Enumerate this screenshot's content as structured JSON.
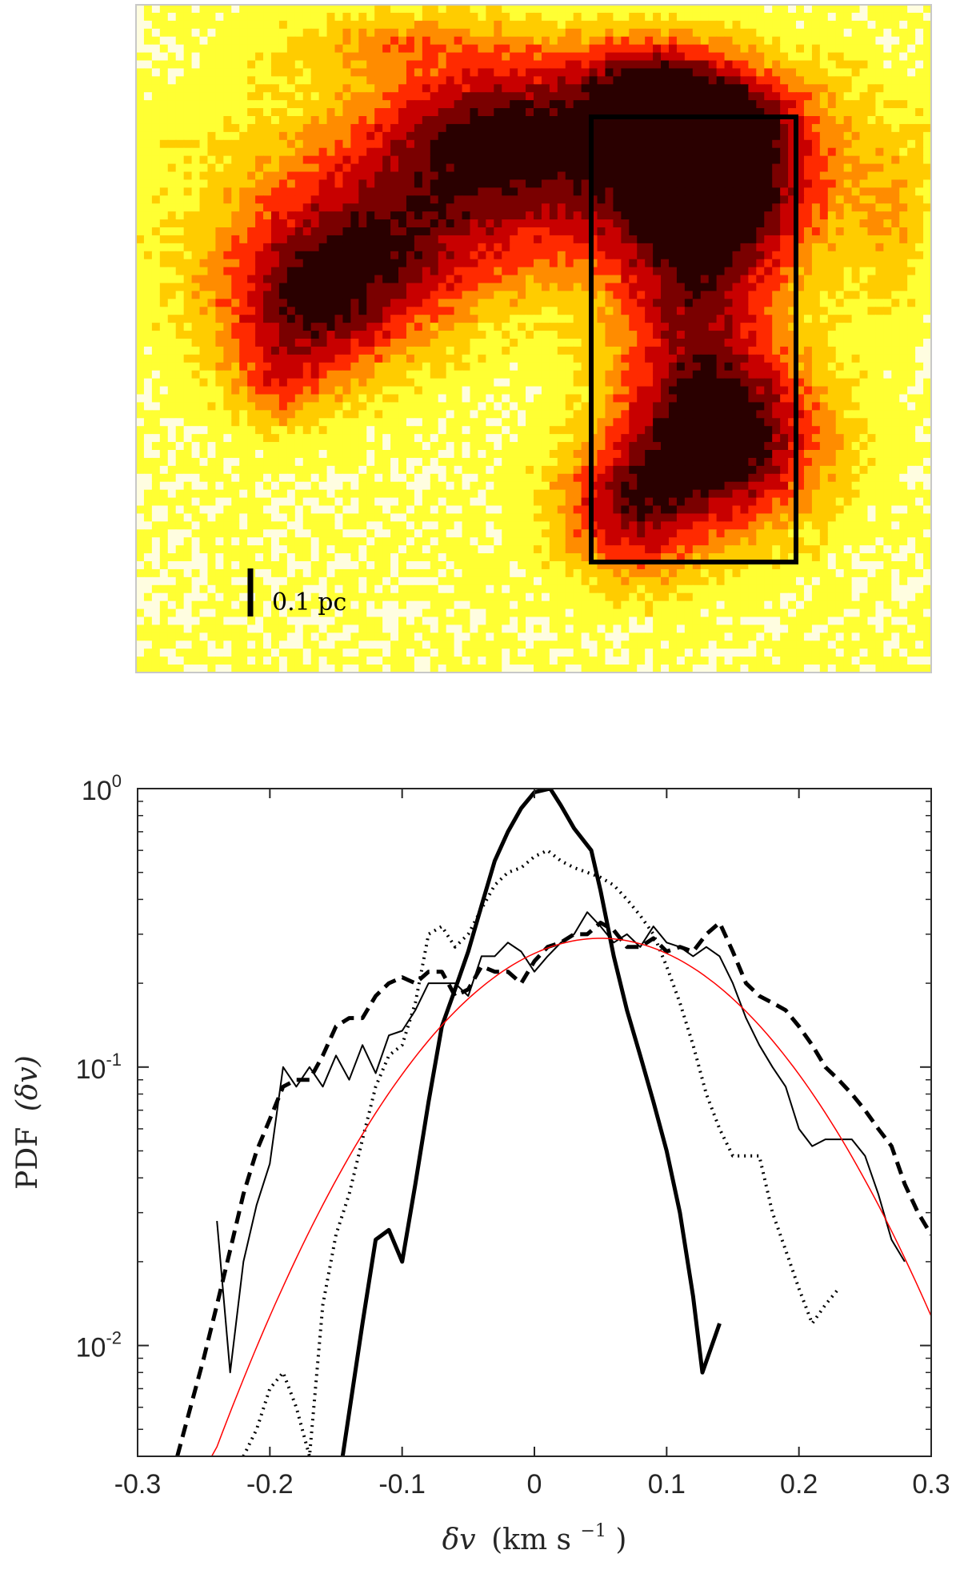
{
  "map": {
    "scale_bar_label": "0.1 pc",
    "colormap": [
      "#fffde0",
      "#ffff33",
      "#ffcc00",
      "#ff8c00",
      "#ff2a00",
      "#c80000",
      "#7a0000",
      "#2a0000"
    ]
  },
  "chart_data": {
    "type": "line",
    "xlabel_main": "δv",
    "xlabel_unit": "(km s",
    "xlabel_exp": "−1",
    "xlabel_close": ")",
    "ylabel_main": "PDF",
    "ylabel_arg": "(δv)",
    "xlim": [
      -0.3,
      0.3
    ],
    "ylim": [
      0.004,
      1.0
    ],
    "yscale": "log",
    "xticks": [
      "-0.3",
      "-0.2",
      "-0.1",
      "0",
      "0.1",
      "0.2",
      "0.3"
    ],
    "yticks": [
      {
        "value": 1.0,
        "base": "10",
        "exp": "0"
      },
      {
        "value": 0.1,
        "base": "10",
        "exp": "-1"
      },
      {
        "value": 0.01,
        "base": "10",
        "exp": "-2"
      }
    ],
    "grid": false,
    "legend": "none",
    "series": [
      {
        "style": "thick-solid",
        "color": "#000000",
        "x": [
          -0.145,
          -0.13,
          -0.12,
          -0.11,
          -0.1,
          -0.09,
          -0.08,
          -0.07,
          -0.06,
          -0.05,
          -0.04,
          -0.03,
          -0.02,
          -0.01,
          0.0,
          0.012,
          0.02,
          0.03,
          0.043,
          0.05,
          0.06,
          0.07,
          0.08,
          0.09,
          0.1,
          0.11,
          0.12,
          0.127,
          0.14
        ],
        "y": [
          0.004,
          0.012,
          0.024,
          0.026,
          0.02,
          0.038,
          0.075,
          0.14,
          0.19,
          0.26,
          0.38,
          0.55,
          0.7,
          0.85,
          0.97,
          1.0,
          0.87,
          0.72,
          0.6,
          0.43,
          0.25,
          0.16,
          0.11,
          0.075,
          0.05,
          0.03,
          0.015,
          0.008,
          0.012
        ]
      },
      {
        "style": "dotted",
        "color": "#000000",
        "x": [
          -0.22,
          -0.21,
          -0.2,
          -0.19,
          -0.18,
          -0.17,
          -0.16,
          -0.15,
          -0.14,
          -0.13,
          -0.12,
          -0.11,
          -0.1,
          -0.09,
          -0.08,
          -0.07,
          -0.06,
          -0.05,
          -0.04,
          -0.03,
          -0.02,
          -0.01,
          0.0,
          0.01,
          0.02,
          0.03,
          0.04,
          0.05,
          0.06,
          0.07,
          0.08,
          0.09,
          0.1,
          0.11,
          0.12,
          0.13,
          0.14,
          0.15,
          0.16,
          0.17,
          0.18,
          0.19,
          0.2,
          0.21,
          0.22,
          0.23
        ],
        "y": [
          0.004,
          0.005,
          0.007,
          0.008,
          0.006,
          0.004,
          0.014,
          0.025,
          0.035,
          0.055,
          0.085,
          0.11,
          0.12,
          0.17,
          0.3,
          0.32,
          0.27,
          0.3,
          0.37,
          0.45,
          0.5,
          0.52,
          0.57,
          0.6,
          0.55,
          0.52,
          0.5,
          0.48,
          0.45,
          0.4,
          0.35,
          0.3,
          0.23,
          0.17,
          0.12,
          0.08,
          0.06,
          0.048,
          0.048,
          0.048,
          0.03,
          0.022,
          0.016,
          0.012,
          0.014,
          0.016
        ]
      },
      {
        "style": "thin-solid",
        "color": "#000000",
        "x": [
          -0.24,
          -0.23,
          -0.22,
          -0.21,
          -0.2,
          -0.19,
          -0.18,
          -0.17,
          -0.16,
          -0.15,
          -0.14,
          -0.13,
          -0.12,
          -0.11,
          -0.1,
          -0.09,
          -0.08,
          -0.07,
          -0.06,
          -0.05,
          -0.04,
          -0.03,
          -0.02,
          -0.01,
          0.0,
          0.01,
          0.02,
          0.03,
          0.04,
          0.05,
          0.06,
          0.07,
          0.08,
          0.09,
          0.1,
          0.11,
          0.12,
          0.13,
          0.14,
          0.15,
          0.16,
          0.17,
          0.18,
          0.19,
          0.2,
          0.21,
          0.22,
          0.23,
          0.24,
          0.25,
          0.26,
          0.27,
          0.28
        ],
        "y": [
          0.028,
          0.008,
          0.02,
          0.032,
          0.045,
          0.1,
          0.085,
          0.1,
          0.085,
          0.11,
          0.09,
          0.12,
          0.095,
          0.13,
          0.135,
          0.16,
          0.2,
          0.2,
          0.2,
          0.18,
          0.25,
          0.25,
          0.28,
          0.26,
          0.22,
          0.25,
          0.28,
          0.3,
          0.36,
          0.32,
          0.28,
          0.3,
          0.27,
          0.32,
          0.28,
          0.27,
          0.25,
          0.27,
          0.25,
          0.2,
          0.15,
          0.12,
          0.1,
          0.085,
          0.06,
          0.052,
          0.055,
          0.055,
          0.055,
          0.048,
          0.035,
          0.024,
          0.02
        ]
      },
      {
        "style": "dashed",
        "color": "#000000",
        "x": [
          -0.27,
          -0.26,
          -0.25,
          -0.24,
          -0.23,
          -0.22,
          -0.21,
          -0.2,
          -0.19,
          -0.18,
          -0.17,
          -0.16,
          -0.15,
          -0.14,
          -0.13,
          -0.12,
          -0.11,
          -0.1,
          -0.09,
          -0.08,
          -0.07,
          -0.06,
          -0.05,
          -0.04,
          -0.03,
          -0.02,
          -0.01,
          0.0,
          0.01,
          0.02,
          0.03,
          0.04,
          0.05,
          0.06,
          0.07,
          0.08,
          0.09,
          0.1,
          0.11,
          0.12,
          0.13,
          0.14,
          0.15,
          0.16,
          0.17,
          0.18,
          0.19,
          0.2,
          0.21,
          0.22,
          0.23,
          0.24,
          0.25,
          0.26,
          0.27,
          0.28,
          0.29,
          0.3
        ],
        "y": [
          0.004,
          0.006,
          0.009,
          0.014,
          0.022,
          0.035,
          0.05,
          0.065,
          0.085,
          0.09,
          0.09,
          0.11,
          0.14,
          0.15,
          0.15,
          0.18,
          0.2,
          0.21,
          0.2,
          0.22,
          0.22,
          0.18,
          0.19,
          0.23,
          0.22,
          0.22,
          0.2,
          0.24,
          0.27,
          0.28,
          0.3,
          0.3,
          0.33,
          0.31,
          0.27,
          0.27,
          0.29,
          0.26,
          0.27,
          0.26,
          0.3,
          0.33,
          0.26,
          0.2,
          0.18,
          0.17,
          0.16,
          0.14,
          0.12,
          0.1,
          0.09,
          0.08,
          0.07,
          0.06,
          0.052,
          0.038,
          0.03,
          0.025
        ]
      },
      {
        "style": "fit",
        "color": "#ff0000",
        "gaussian": {
          "amplitude": 0.29,
          "mean": 0.05,
          "sigma": 0.1
        }
      }
    ]
  }
}
